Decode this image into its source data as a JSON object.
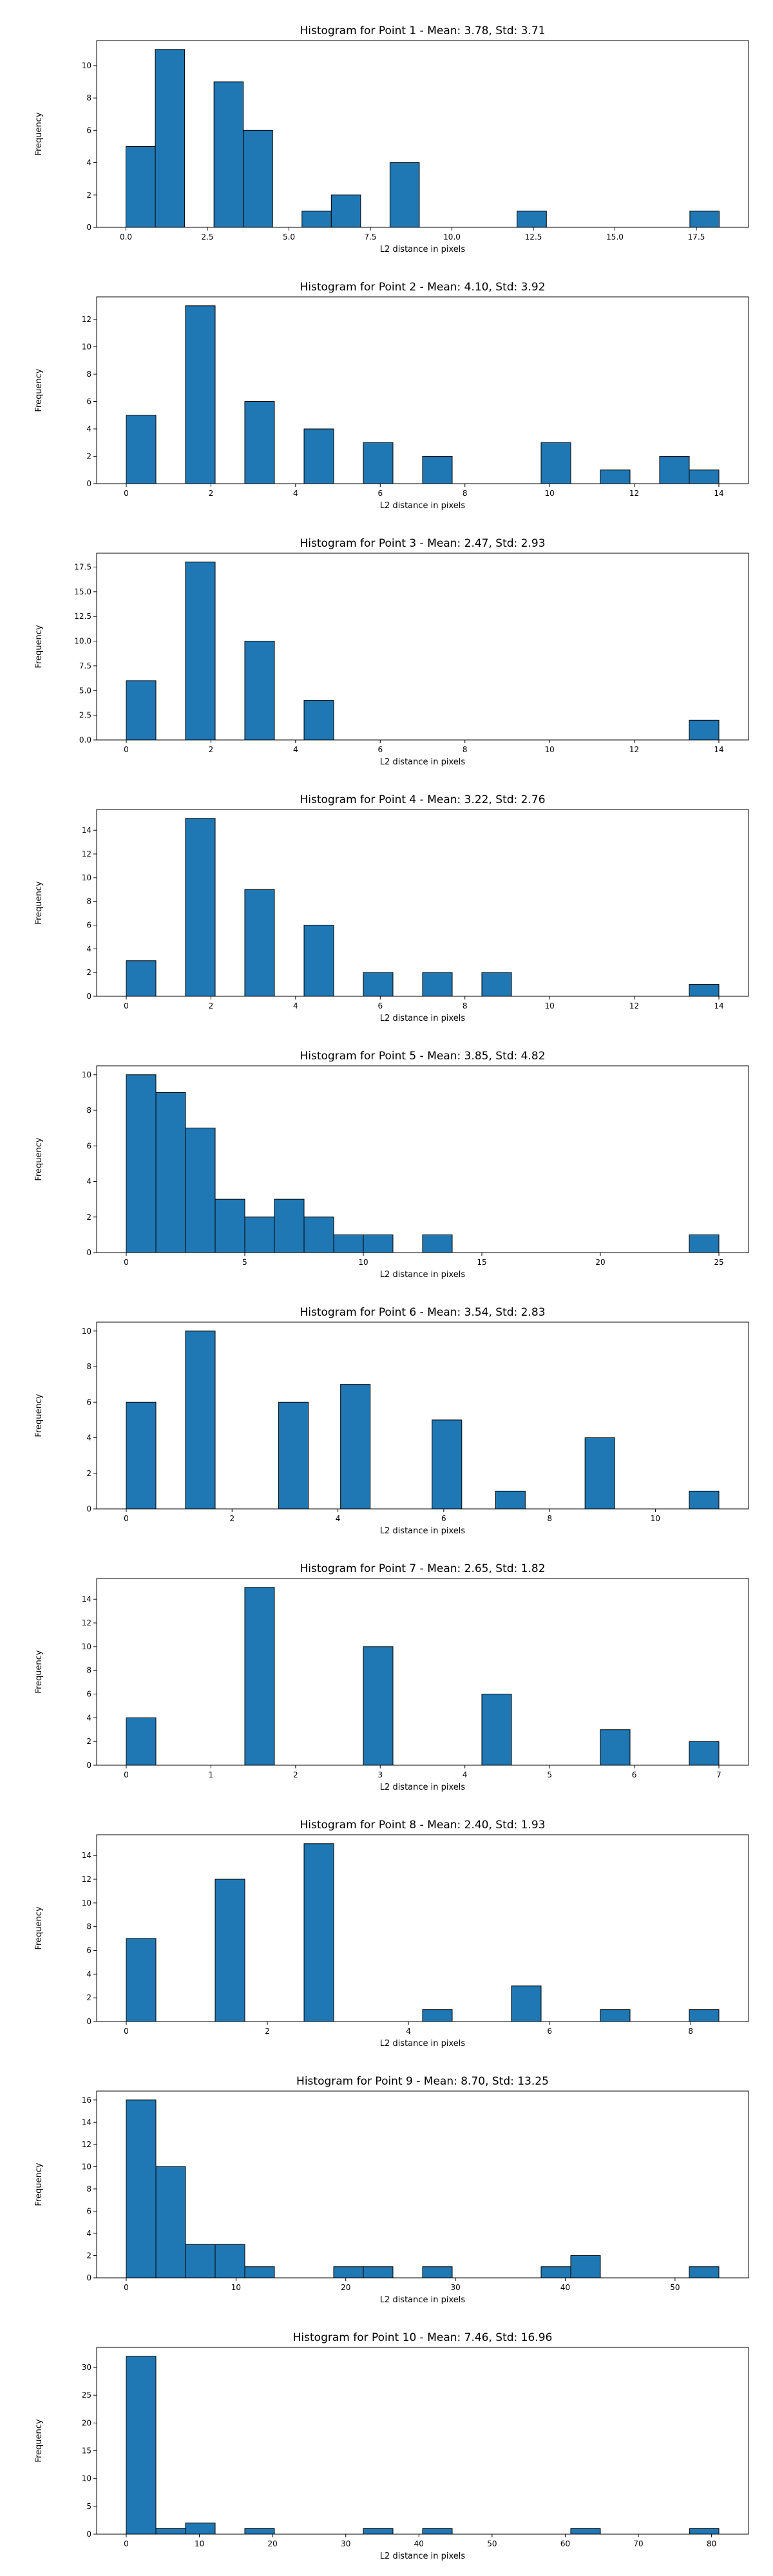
{
  "figure": {
    "bar_color": "#1f77b4",
    "edge_color": "#000000"
  },
  "chart_data": [
    {
      "type": "bar",
      "title": "Histogram for Point 1 - Mean: 3.78, Std: 3.71",
      "xlabel": "L2 distance in pixels",
      "ylabel": "Frequency",
      "xlim": [
        -0.9,
        19.1
      ],
      "ylim": [
        0,
        11.55
      ],
      "xticks": [
        0,
        2.5,
        5,
        7.5,
        10,
        12.5,
        15,
        17.5
      ],
      "xtick_labels": [
        "0.0",
        "2.5",
        "5.0",
        "7.5",
        "10.0",
        "12.5",
        "15.0",
        "17.5"
      ],
      "yticks": [
        0,
        2,
        4,
        6,
        8,
        10
      ],
      "ytick_labels": [
        "0",
        "2",
        "4",
        "6",
        "8",
        "10"
      ],
      "bins": [
        {
          "start": 0.0,
          "end": 0.9,
          "count": 5
        },
        {
          "start": 0.9,
          "end": 1.8,
          "count": 11
        },
        {
          "start": 2.7,
          "end": 3.6,
          "count": 9
        },
        {
          "start": 3.6,
          "end": 4.5,
          "count": 6
        },
        {
          "start": 5.4,
          "end": 6.3,
          "count": 1
        },
        {
          "start": 6.3,
          "end": 7.2,
          "count": 2
        },
        {
          "start": 8.1,
          "end": 9.0,
          "count": 4
        },
        {
          "start": 12.0,
          "end": 12.9,
          "count": 1
        },
        {
          "start": 17.3,
          "end": 18.2,
          "count": 1
        }
      ]
    },
    {
      "type": "bar",
      "title": "Histogram for Point 2 - Mean: 4.10, Std: 3.92",
      "xlabel": "L2 distance in pixels",
      "ylabel": "Frequency",
      "xlim": [
        -0.7,
        14.7
      ],
      "ylim": [
        0,
        13.65
      ],
      "xticks": [
        0,
        2,
        4,
        6,
        8,
        10,
        12,
        14
      ],
      "xtick_labels": [
        "0",
        "2",
        "4",
        "6",
        "8",
        "10",
        "12",
        "14"
      ],
      "yticks": [
        0,
        2,
        4,
        6,
        8,
        10,
        12
      ],
      "ytick_labels": [
        "0",
        "2",
        "4",
        "6",
        "8",
        "10",
        "12"
      ],
      "bins": [
        {
          "start": 0.0,
          "end": 0.7,
          "count": 5
        },
        {
          "start": 1.4,
          "end": 2.1,
          "count": 13
        },
        {
          "start": 2.8,
          "end": 3.5,
          "count": 6
        },
        {
          "start": 4.2,
          "end": 4.9,
          "count": 4
        },
        {
          "start": 5.6,
          "end": 6.3,
          "count": 3
        },
        {
          "start": 7.0,
          "end": 7.7,
          "count": 2
        },
        {
          "start": 9.8,
          "end": 10.5,
          "count": 3
        },
        {
          "start": 11.2,
          "end": 11.9,
          "count": 1
        },
        {
          "start": 12.6,
          "end": 13.3,
          "count": 2
        },
        {
          "start": 13.3,
          "end": 14.0,
          "count": 1
        }
      ]
    },
    {
      "type": "bar",
      "title": "Histogram for Point 3 - Mean: 2.47, Std: 2.93",
      "xlabel": "L2 distance in pixels",
      "ylabel": "Frequency",
      "xlim": [
        -0.7,
        14.7
      ],
      "ylim": [
        0,
        18.9
      ],
      "xticks": [
        0,
        2,
        4,
        6,
        8,
        10,
        12,
        14
      ],
      "xtick_labels": [
        "0",
        "2",
        "4",
        "6",
        "8",
        "10",
        "12",
        "14"
      ],
      "yticks": [
        0,
        2.5,
        5,
        7.5,
        10,
        12.5,
        15,
        17.5
      ],
      "ytick_labels": [
        "0.0",
        "2.5",
        "5.0",
        "7.5",
        "10.0",
        "12.5",
        "15.0",
        "17.5"
      ],
      "bins": [
        {
          "start": 0.0,
          "end": 0.7,
          "count": 6
        },
        {
          "start": 1.4,
          "end": 2.1,
          "count": 18
        },
        {
          "start": 2.8,
          "end": 3.5,
          "count": 10
        },
        {
          "start": 4.2,
          "end": 4.9,
          "count": 4
        },
        {
          "start": 13.3,
          "end": 14.0,
          "count": 2
        }
      ]
    },
    {
      "type": "bar",
      "title": "Histogram for Point 4 - Mean: 3.22, Std: 2.76",
      "xlabel": "L2 distance in pixels",
      "ylabel": "Frequency",
      "xlim": [
        -0.7,
        14.7
      ],
      "ylim": [
        0,
        15.75
      ],
      "xticks": [
        0,
        2,
        4,
        6,
        8,
        10,
        12,
        14
      ],
      "xtick_labels": [
        "0",
        "2",
        "4",
        "6",
        "8",
        "10",
        "12",
        "14"
      ],
      "yticks": [
        0,
        2,
        4,
        6,
        8,
        10,
        12,
        14
      ],
      "ytick_labels": [
        "0",
        "2",
        "4",
        "6",
        "8",
        "10",
        "12",
        "14"
      ],
      "bins": [
        {
          "start": 0.0,
          "end": 0.7,
          "count": 3
        },
        {
          "start": 1.4,
          "end": 2.1,
          "count": 15
        },
        {
          "start": 2.8,
          "end": 3.5,
          "count": 9
        },
        {
          "start": 4.2,
          "end": 4.9,
          "count": 6
        },
        {
          "start": 5.6,
          "end": 6.3,
          "count": 2
        },
        {
          "start": 7.0,
          "end": 7.7,
          "count": 2
        },
        {
          "start": 8.4,
          "end": 9.1,
          "count": 2
        },
        {
          "start": 13.3,
          "end": 14.0,
          "count": 1
        }
      ]
    },
    {
      "type": "bar",
      "title": "Histogram for Point 5 - Mean: 3.85, Std: 4.82",
      "xlabel": "L2 distance in pixels",
      "ylabel": "Frequency",
      "xlim": [
        -1.25,
        26.25
      ],
      "ylim": [
        0,
        10.5
      ],
      "xticks": [
        0,
        5,
        10,
        15,
        20,
        25
      ],
      "xtick_labels": [
        "0",
        "5",
        "10",
        "15",
        "20",
        "25"
      ],
      "yticks": [
        0,
        2,
        4,
        6,
        8,
        10
      ],
      "ytick_labels": [
        "0",
        "2",
        "4",
        "6",
        "8",
        "10"
      ],
      "bins": [
        {
          "start": 0.0,
          "end": 1.25,
          "count": 10
        },
        {
          "start": 1.25,
          "end": 2.5,
          "count": 9
        },
        {
          "start": 2.5,
          "end": 3.75,
          "count": 7
        },
        {
          "start": 3.75,
          "end": 5.0,
          "count": 3
        },
        {
          "start": 5.0,
          "end": 6.25,
          "count": 2
        },
        {
          "start": 6.25,
          "end": 7.5,
          "count": 3
        },
        {
          "start": 7.5,
          "end": 8.75,
          "count": 2
        },
        {
          "start": 8.75,
          "end": 10.0,
          "count": 1
        },
        {
          "start": 10.0,
          "end": 11.25,
          "count": 1
        },
        {
          "start": 12.5,
          "end": 13.75,
          "count": 1
        },
        {
          "start": 23.75,
          "end": 25.0,
          "count": 1
        }
      ]
    },
    {
      "type": "bar",
      "title": "Histogram for Point 6 - Mean: 3.54, Std: 2.83",
      "xlabel": "L2 distance in pixels",
      "ylabel": "Frequency",
      "xlim": [
        -0.56,
        11.76
      ],
      "ylim": [
        0,
        10.5
      ],
      "xticks": [
        0,
        2,
        4,
        6,
        8,
        10
      ],
      "xtick_labels": [
        "0",
        "2",
        "4",
        "6",
        "8",
        "10"
      ],
      "yticks": [
        0,
        2,
        4,
        6,
        8,
        10
      ],
      "ytick_labels": [
        "0",
        "2",
        "4",
        "6",
        "8",
        "10"
      ],
      "bins": [
        {
          "start": 0.0,
          "end": 0.56,
          "count": 6
        },
        {
          "start": 1.12,
          "end": 1.68,
          "count": 10
        },
        {
          "start": 2.88,
          "end": 3.44,
          "count": 6
        },
        {
          "start": 4.05,
          "end": 4.61,
          "count": 7
        },
        {
          "start": 5.78,
          "end": 6.34,
          "count": 5
        },
        {
          "start": 6.98,
          "end": 7.54,
          "count": 1
        },
        {
          "start": 8.67,
          "end": 9.23,
          "count": 4
        },
        {
          "start": 10.64,
          "end": 11.2,
          "count": 1
        }
      ]
    },
    {
      "type": "bar",
      "title": "Histogram for Point 7 - Mean: 2.65, Std: 1.82",
      "xlabel": "L2 distance in pixels",
      "ylabel": "Frequency",
      "xlim": [
        -0.35,
        7.35
      ],
      "ylim": [
        0,
        15.75
      ],
      "xticks": [
        0,
        1,
        2,
        3,
        4,
        5,
        6,
        7
      ],
      "xtick_labels": [
        "0",
        "1",
        "2",
        "3",
        "4",
        "5",
        "6",
        "7"
      ],
      "yticks": [
        0,
        2,
        4,
        6,
        8,
        10,
        12,
        14
      ],
      "ytick_labels": [
        "0",
        "2",
        "4",
        "6",
        "8",
        "10",
        "12",
        "14"
      ],
      "bins": [
        {
          "start": 0.0,
          "end": 0.35,
          "count": 4
        },
        {
          "start": 1.4,
          "end": 1.75,
          "count": 15
        },
        {
          "start": 2.8,
          "end": 3.15,
          "count": 10
        },
        {
          "start": 4.2,
          "end": 4.55,
          "count": 6
        },
        {
          "start": 5.6,
          "end": 5.95,
          "count": 3
        },
        {
          "start": 6.65,
          "end": 7.0,
          "count": 2
        }
      ]
    },
    {
      "type": "bar",
      "title": "Histogram for Point 8 - Mean: 2.40, Std: 1.93",
      "xlabel": "L2 distance in pixels",
      "ylabel": "Frequency",
      "xlim": [
        -0.42,
        8.82
      ],
      "ylim": [
        0,
        15.75
      ],
      "xticks": [
        0,
        2,
        4,
        6,
        8
      ],
      "xtick_labels": [
        "0",
        "2",
        "4",
        "6",
        "8"
      ],
      "yticks": [
        0,
        2,
        4,
        6,
        8,
        10,
        12,
        14
      ],
      "ytick_labels": [
        "0",
        "2",
        "4",
        "6",
        "8",
        "10",
        "12",
        "14"
      ],
      "bins": [
        {
          "start": 0.0,
          "end": 0.42,
          "count": 7
        },
        {
          "start": 1.26,
          "end": 1.68,
          "count": 12
        },
        {
          "start": 2.52,
          "end": 2.94,
          "count": 15
        },
        {
          "start": 4.2,
          "end": 4.62,
          "count": 1
        },
        {
          "start": 5.46,
          "end": 5.88,
          "count": 3
        },
        {
          "start": 6.72,
          "end": 7.14,
          "count": 1
        },
        {
          "start": 7.98,
          "end": 8.4,
          "count": 1
        }
      ]
    },
    {
      "type": "bar",
      "title": "Histogram for Point 9 - Mean: 8.70, Std: 13.25",
      "xlabel": "L2 distance in pixels",
      "ylabel": "Frequency",
      "xlim": [
        -2.7,
        56.7
      ],
      "ylim": [
        0,
        16.8
      ],
      "xticks": [
        0,
        10,
        20,
        30,
        40,
        50
      ],
      "xtick_labels": [
        "0",
        "10",
        "20",
        "30",
        "40",
        "50"
      ],
      "yticks": [
        0,
        2,
        4,
        6,
        8,
        10,
        12,
        14,
        16
      ],
      "ytick_labels": [
        "0",
        "2",
        "4",
        "6",
        "8",
        "10",
        "12",
        "14",
        "16"
      ],
      "bins": [
        {
          "start": 0.0,
          "end": 2.7,
          "count": 16
        },
        {
          "start": 2.7,
          "end": 5.4,
          "count": 10
        },
        {
          "start": 5.4,
          "end": 8.1,
          "count": 3
        },
        {
          "start": 8.1,
          "end": 10.8,
          "count": 3
        },
        {
          "start": 10.8,
          "end": 13.5,
          "count": 1
        },
        {
          "start": 18.9,
          "end": 21.6,
          "count": 1
        },
        {
          "start": 21.6,
          "end": 24.3,
          "count": 1
        },
        {
          "start": 27.0,
          "end": 29.7,
          "count": 1
        },
        {
          "start": 37.8,
          "end": 40.5,
          "count": 1
        },
        {
          "start": 40.5,
          "end": 43.2,
          "count": 2
        },
        {
          "start": 51.3,
          "end": 54.0,
          "count": 1
        }
      ]
    },
    {
      "type": "bar",
      "title": "Histogram for Point 10 - Mean: 7.46, Std: 16.96",
      "xlabel": "L2 distance in pixels",
      "ylabel": "Frequency",
      "xlim": [
        -4.05,
        85.05
      ],
      "ylim": [
        0,
        33.6
      ],
      "xticks": [
        0,
        10,
        20,
        30,
        40,
        50,
        60,
        70,
        80
      ],
      "xtick_labels": [
        "0",
        "10",
        "20",
        "30",
        "40",
        "50",
        "60",
        "70",
        "80"
      ],
      "yticks": [
        0,
        5,
        10,
        15,
        20,
        25,
        30
      ],
      "ytick_labels": [
        "0",
        "5",
        "10",
        "15",
        "20",
        "25",
        "30"
      ],
      "bins": [
        {
          "start": 0.0,
          "end": 4.05,
          "count": 32
        },
        {
          "start": 4.05,
          "end": 8.1,
          "count": 1
        },
        {
          "start": 8.1,
          "end": 12.15,
          "count": 2
        },
        {
          "start": 16.2,
          "end": 20.25,
          "count": 1
        },
        {
          "start": 32.4,
          "end": 36.45,
          "count": 1
        },
        {
          "start": 40.5,
          "end": 44.55,
          "count": 1
        },
        {
          "start": 60.75,
          "end": 64.8,
          "count": 1
        },
        {
          "start": 77.0,
          "end": 81.0,
          "count": 1
        }
      ]
    }
  ]
}
